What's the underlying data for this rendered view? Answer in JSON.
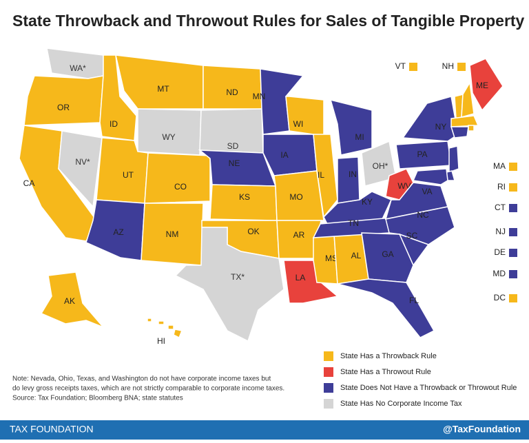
{
  "title": "State Throwback and Throwout Rules for Sales of Tangible Property",
  "legend": [
    {
      "label": "State Has a Throwback Rule",
      "color": "#f6b81b"
    },
    {
      "label": "State Has a Throwout Rule",
      "color": "#e8423c"
    },
    {
      "label": "State Does Not Have a Throwback or Throwout Rule",
      "color": "#3e3d98"
    },
    {
      "label": "State Has No Corporate Income Tax",
      "color": "#d5d5d5"
    }
  ],
  "states": [
    {
      "label": "WA*",
      "category": 3
    },
    {
      "label": "OR",
      "category": 0
    },
    {
      "label": "CA",
      "category": 0
    },
    {
      "label": "NV*",
      "category": 3
    },
    {
      "label": "ID",
      "category": 0
    },
    {
      "label": "MT",
      "category": 0
    },
    {
      "label": "WY",
      "category": 3
    },
    {
      "label": "UT",
      "category": 0
    },
    {
      "label": "CO",
      "category": 0
    },
    {
      "label": "AZ",
      "category": 2
    },
    {
      "label": "NM",
      "category": 0
    },
    {
      "label": "ND",
      "category": 0
    },
    {
      "label": "SD",
      "category": 3
    },
    {
      "label": "NE",
      "category": 2
    },
    {
      "label": "KS",
      "category": 0
    },
    {
      "label": "OK",
      "category": 0
    },
    {
      "label": "TX*",
      "category": 3
    },
    {
      "label": "MN",
      "category": 2
    },
    {
      "label": "IA",
      "category": 2
    },
    {
      "label": "MO",
      "category": 0
    },
    {
      "label": "AR",
      "category": 0
    },
    {
      "label": "LA",
      "category": 1
    },
    {
      "label": "WI",
      "category": 0
    },
    {
      "label": "IL",
      "category": 0
    },
    {
      "label": "MS",
      "category": 0
    },
    {
      "label": "AL",
      "category": 0
    },
    {
      "label": "MI",
      "category": 2
    },
    {
      "label": "IN",
      "category": 2
    },
    {
      "label": "OH*",
      "category": 3
    },
    {
      "label": "KY",
      "category": 2
    },
    {
      "label": "TN",
      "category": 2
    },
    {
      "label": "WV",
      "category": 1
    },
    {
      "label": "VA",
      "category": 2
    },
    {
      "label": "NC",
      "category": 2
    },
    {
      "label": "SC",
      "category": 2
    },
    {
      "label": "GA",
      "category": 2
    },
    {
      "label": "FL",
      "category": 2
    },
    {
      "label": "PA",
      "category": 2
    },
    {
      "label": "NY",
      "category": 2
    },
    {
      "label": "ME",
      "category": 1
    },
    {
      "label": "AK",
      "category": 0
    },
    {
      "label": "HI",
      "category": 0
    }
  ],
  "small_states": [
    {
      "label": "VT",
      "category": 0
    },
    {
      "label": "NH",
      "category": 0
    },
    {
      "label": "MA",
      "category": 0
    },
    {
      "label": "RI",
      "category": 0
    },
    {
      "label": "CT",
      "category": 2
    },
    {
      "label": "NJ",
      "category": 2
    },
    {
      "label": "DE",
      "category": 2
    },
    {
      "label": "MD",
      "category": 2
    },
    {
      "label": "DC",
      "category": 0
    }
  ],
  "note": [
    "Note: Nevada, Ohio, Texas, and Washington do not have corporate income taxes but",
    "do levy gross receipts taxes, which are not strictly comparable to corporate income taxes.",
    "Source: Tax Foundation; Bloomberg BNA; state statutes"
  ],
  "footer": {
    "left": "TAX FOUNDATION",
    "right": "@TaxFoundation"
  }
}
